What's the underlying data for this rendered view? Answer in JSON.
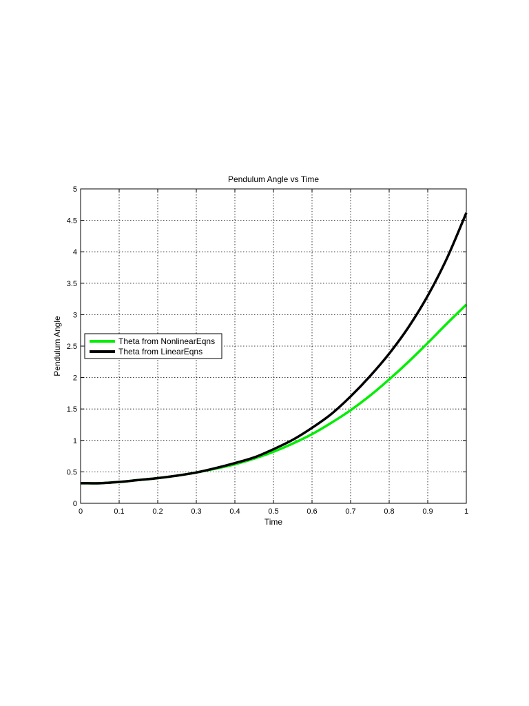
{
  "chart_data": {
    "type": "line",
    "title": "Pendulum Angle vs Time",
    "xlabel": "Time",
    "ylabel": "Pendulum Angle",
    "xlim": [
      0,
      1
    ],
    "ylim": [
      0,
      5
    ],
    "grid": true,
    "grid_style": "dotted",
    "legend_position": "center-left",
    "x_ticks": [
      0,
      0.1,
      0.2,
      0.3,
      0.4,
      0.5,
      0.6,
      0.7,
      0.8,
      0.9,
      1
    ],
    "x_tick_labels": [
      "0",
      "0.1",
      "0.2",
      "0.3",
      "0.4",
      "0.5",
      "0.6",
      "0.7",
      "0.8",
      "0.9",
      "1"
    ],
    "y_ticks": [
      0,
      0.5,
      1,
      1.5,
      2,
      2.5,
      3,
      3.5,
      4,
      4.5,
      5
    ],
    "y_tick_labels": [
      "0",
      "0.5",
      "1",
      "1.5",
      "2",
      "2.5",
      "3",
      "3.5",
      "4",
      "4.5",
      "5"
    ],
    "x": [
      0,
      0.05,
      0.1,
      0.15,
      0.2,
      0.25,
      0.3,
      0.35,
      0.4,
      0.45,
      0.5,
      0.55,
      0.6,
      0.65,
      0.7,
      0.75,
      0.8,
      0.85,
      0.9,
      0.95,
      1.0
    ],
    "series": [
      {
        "name": "Theta from NonlinearEqns",
        "color": "#00ee00",
        "values": [
          0.32,
          0.32,
          0.34,
          0.37,
          0.4,
          0.44,
          0.49,
          0.55,
          0.62,
          0.71,
          0.82,
          0.95,
          1.1,
          1.28,
          1.48,
          1.71,
          1.97,
          2.25,
          2.55,
          2.86,
          3.16
        ]
      },
      {
        "name": "Theta from LinearEqns",
        "color": "#000000",
        "values": [
          0.32,
          0.32,
          0.34,
          0.37,
          0.4,
          0.44,
          0.49,
          0.56,
          0.64,
          0.73,
          0.86,
          1.01,
          1.2,
          1.42,
          1.7,
          2.02,
          2.38,
          2.8,
          3.3,
          3.9,
          4.62
        ]
      }
    ]
  }
}
